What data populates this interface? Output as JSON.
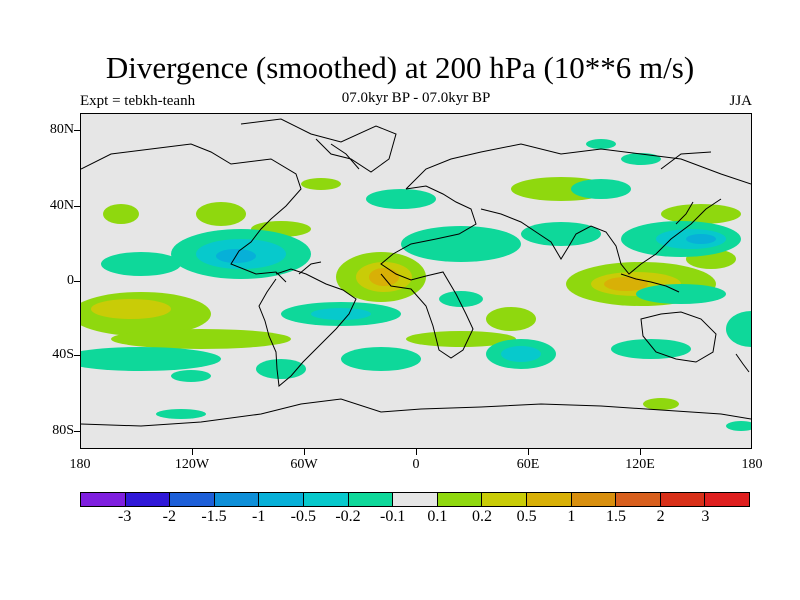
{
  "title": "Divergence (smoothed) at 200 hPa (10**6 m/s)",
  "subtitle": "07.0kyr BP - 07.0kyr BP",
  "experiment": "Expt = tebkh-teanh",
  "season": "JJA",
  "axes": {
    "y_labels": [
      "80N",
      "40N",
      "0",
      "40S",
      "80S"
    ],
    "x_labels": [
      "180",
      "120W",
      "60W",
      "0",
      "60E",
      "120E",
      "180"
    ]
  },
  "colorbar": {
    "colors": [
      "#7f1fdf",
      "#3019d8",
      "#1d5fd8",
      "#0e8fd8",
      "#07b0d8",
      "#07c9cc",
      "#0ed89a",
      "#e6e6e6",
      "#8fd80e",
      "#c9cc07",
      "#d8b007",
      "#d88f0e",
      "#d85f1d",
      "#d83019",
      "#df1f1f"
    ],
    "labels": [
      "-3",
      "-2",
      "-1.5",
      "-1",
      "-0.5",
      "-0.2",
      "-0.1",
      "0.1",
      "0.2",
      "0.5",
      "1",
      "1.5",
      "2",
      "3"
    ]
  }
}
